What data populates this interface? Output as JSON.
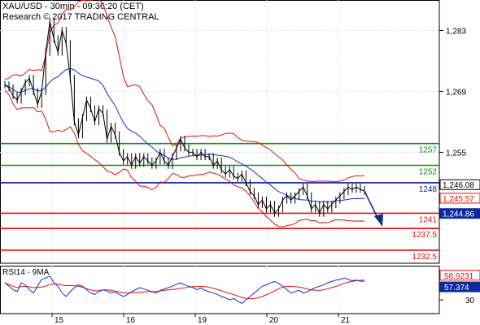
{
  "header": {
    "title": "XAU/USD - 30min - 09:36:20 (CET)",
    "copyright": "Research © 2017 TRADING CENTRAL"
  },
  "colors": {
    "resistance": "#109010",
    "pivot": "#0a1a9a",
    "support": "#e01010",
    "price": "#000000",
    "band": "#e01010",
    "ma": "#1a2ad0",
    "arrow": "#103080"
  },
  "chart_data": [
    {
      "type": "line",
      "title": "",
      "y_axis": {
        "ticks": [
          "1,283",
          "1,269",
          "1,255"
        ],
        "ylim": [
          1229.5,
          1290
        ]
      },
      "x_axis": {
        "ticks": [
          "15",
          "16",
          "19",
          "20",
          "21"
        ]
      },
      "levels": [
        {
          "value": 1257,
          "label": "1257",
          "kind": "resistance"
        },
        {
          "value": 1252,
          "label": "1252",
          "kind": "resistance"
        },
        {
          "value": 1248,
          "label": "1248",
          "kind": "pivot"
        },
        {
          "value": 1241,
          "label": "1241",
          "kind": "support"
        },
        {
          "value": 1237.5,
          "label": "1237.5",
          "kind": "support"
        },
        {
          "value": 1232.5,
          "label": "1232.5",
          "kind": "support"
        }
      ],
      "price_tags": [
        {
          "label": "1,246.08",
          "value": 1246.08,
          "style": "outline"
        },
        {
          "label": "1,245.57",
          "value": 1245.57,
          "style": "red"
        },
        {
          "label": "1,244.86",
          "value": 1244.86,
          "style": "blue"
        }
      ],
      "series": [
        {
          "values": [
            1270.5,
            1269.8,
            1268,
            1267,
            1269,
            1271,
            1272,
            1269,
            1266,
            1269,
            1278,
            1285,
            1281,
            1278,
            1283,
            1280,
            1272,
            1262,
            1259,
            1263,
            1267,
            1265,
            1262,
            1265,
            1264,
            1258,
            1261,
            1259,
            1255,
            1253,
            1254,
            1252,
            1254,
            1252.5,
            1254,
            1253,
            1252,
            1253,
            1255,
            1253,
            1252,
            1254,
            1256,
            1258,
            1256,
            1255,
            1255,
            1254,
            1255,
            1254,
            1254,
            1252,
            1253,
            1251,
            1250,
            1251,
            1249.5,
            1249,
            1250,
            1248,
            1246,
            1245,
            1243,
            1244,
            1242,
            1243,
            1241,
            1242,
            1244,
            1245,
            1244,
            1245,
            1246,
            1247,
            1245,
            1242,
            1243,
            1241,
            1243,
            1242,
            1243,
            1244,
            1245,
            1246,
            1247,
            1246.5,
            1247,
            1246.5,
            1246.08
          ]
        }
      ],
      "indicators": [
        "Bollinger bands",
        "moving average"
      ],
      "forecast": "down",
      "grid": true
    },
    {
      "type": "line",
      "title": "RSI14 - 9MA",
      "y_axis": {
        "ticks": [
          "30"
        ],
        "ylim": [
          10,
          80
        ]
      },
      "value_tags": [
        {
          "label": "58.9231",
          "value": 58.92,
          "style": "red"
        },
        {
          "label": "57.374",
          "value": 57.37,
          "style": "blue"
        }
      ],
      "series": [
        {
          "values": [
            55,
            50,
            45,
            42,
            55,
            52,
            45,
            40,
            50,
            60,
            62,
            65,
            55,
            50,
            40,
            35,
            42,
            48,
            52,
            50,
            45,
            40,
            38,
            42,
            45,
            43,
            40,
            42,
            38,
            35,
            38,
            42,
            45,
            48,
            46,
            44,
            42,
            40,
            44,
            46,
            48,
            50,
            53,
            55,
            52,
            50,
            48,
            45,
            47,
            44,
            42,
            40,
            38,
            35,
            33,
            30,
            32,
            28,
            25,
            30,
            35,
            40,
            45,
            50,
            52,
            55,
            57,
            54,
            50,
            45,
            40,
            42,
            44,
            40,
            42,
            45,
            48,
            50,
            52,
            55,
            57,
            59,
            60,
            62,
            60,
            58,
            59,
            57.37,
            57.37
          ]
        }
      ]
    }
  ]
}
